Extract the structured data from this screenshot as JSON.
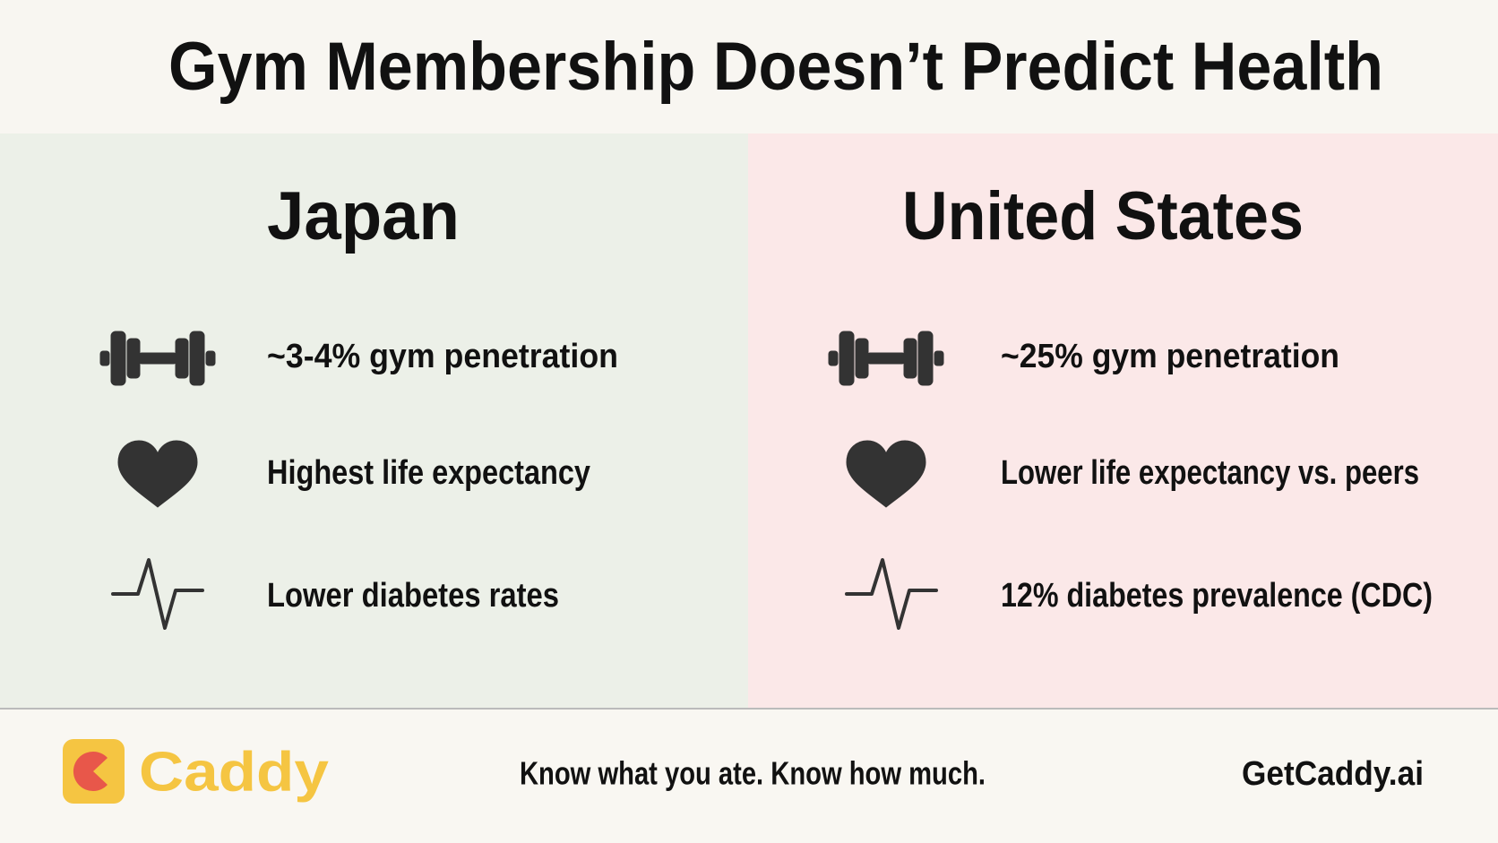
{
  "header": {
    "title": "Gym Membership Doesn’t Predict Health"
  },
  "panels": [
    {
      "title": "Japan",
      "items": [
        "~3-4% gym penetration",
        "Highest life expectancy",
        "Lower diabetes rates"
      ]
    },
    {
      "title": "United States",
      "items": [
        "~25% gym penetration",
        "Lower life expectancy vs. peers",
        "12% diabetes prevalence (CDC)"
      ]
    }
  ],
  "footer": {
    "brand": "Caddy",
    "tagline": "Know what you ate. Know how much.",
    "url": "GetCaddy.ai"
  }
}
